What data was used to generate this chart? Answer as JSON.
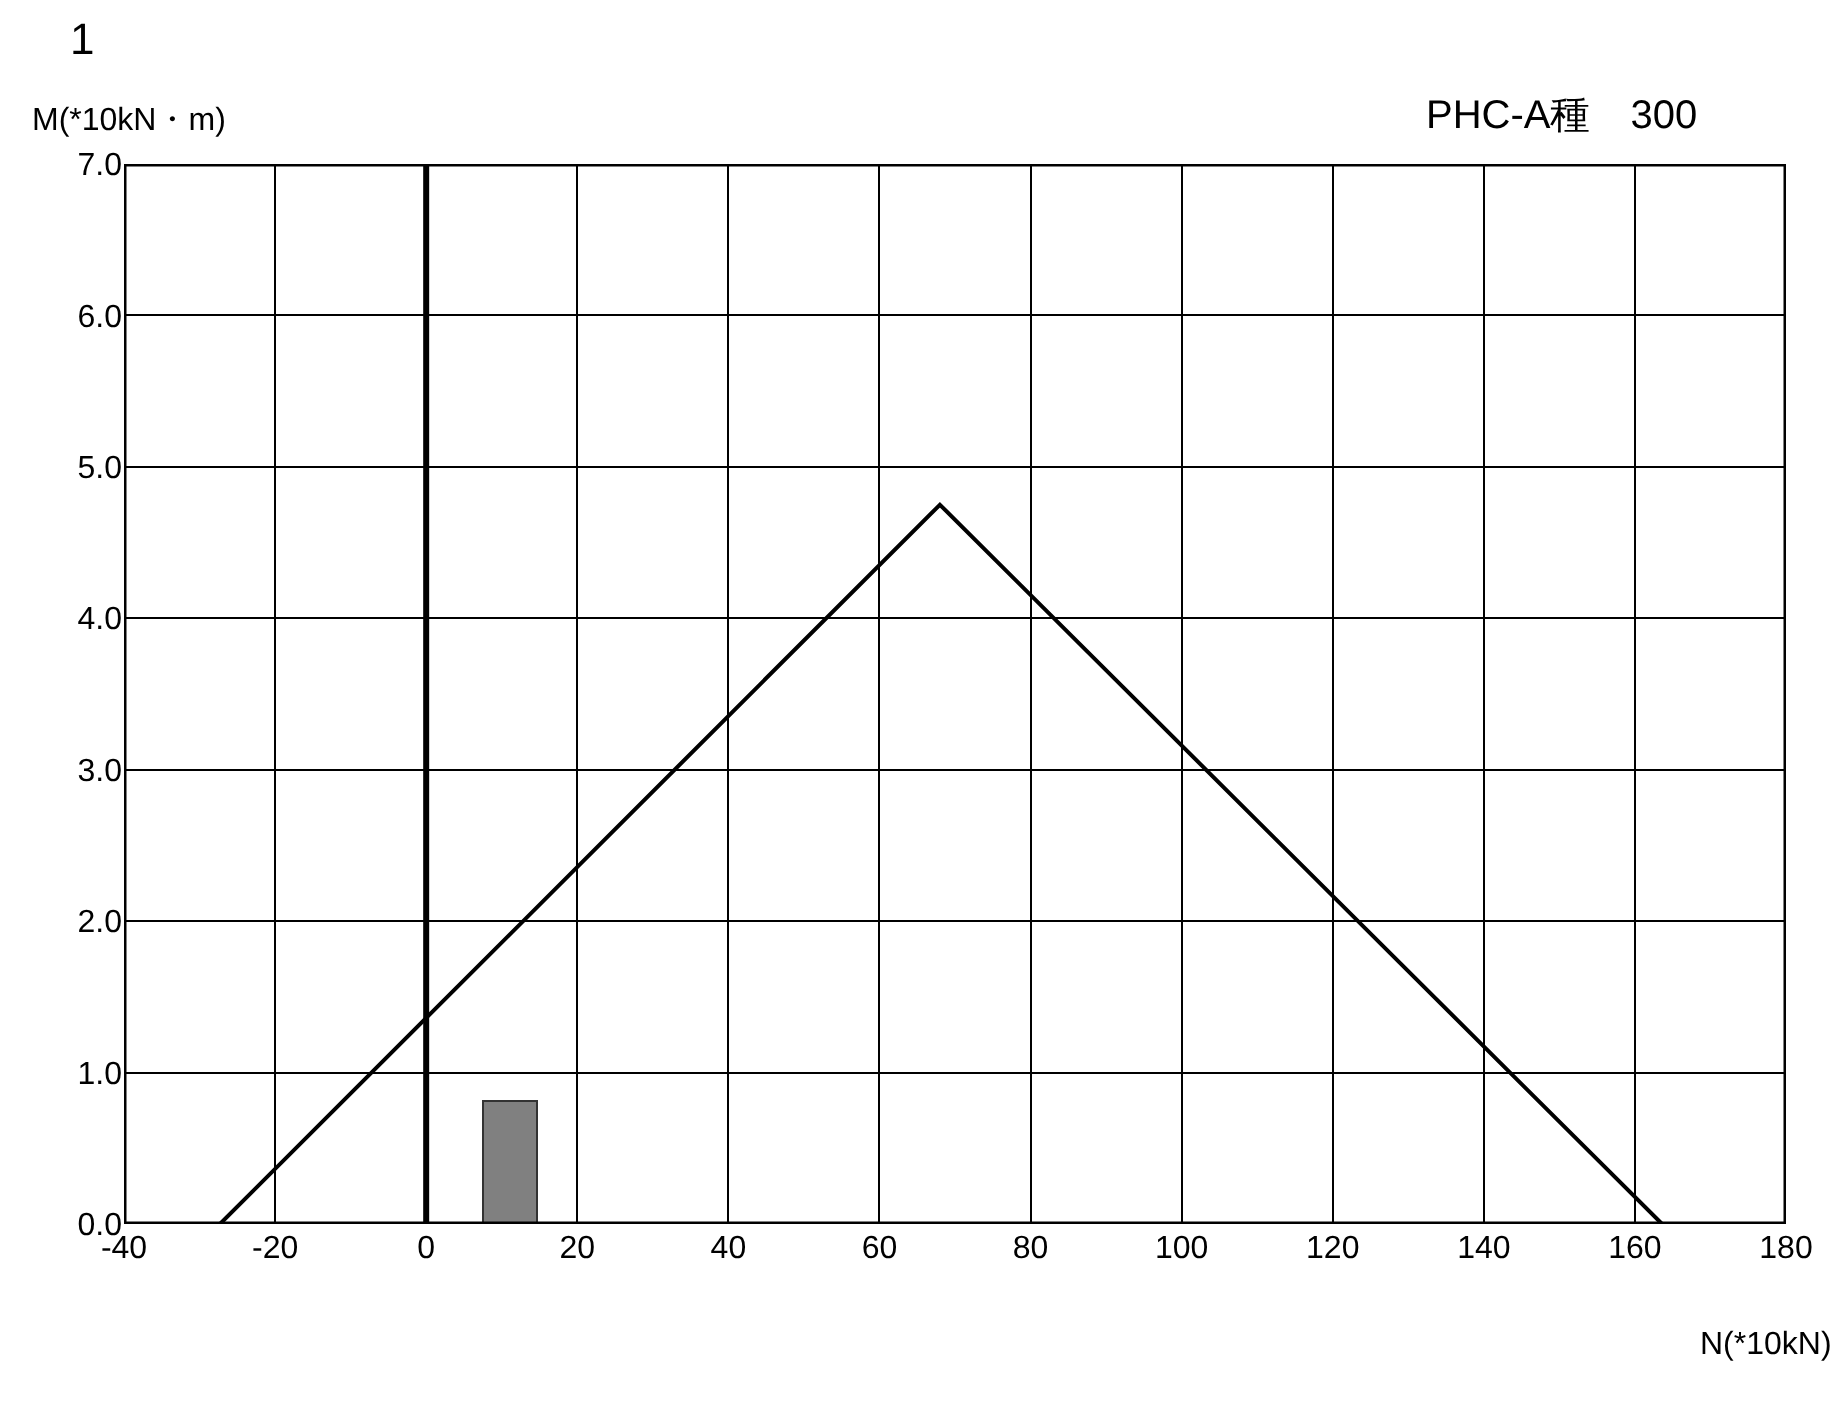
{
  "chart_data": {
    "type": "line",
    "title": "1",
    "subtitle": "PHC-A種　300",
    "xlabel": "N(*10kN)",
    "ylabel": "M(*10kN・m)",
    "series": [
      {
        "color": "#000000",
        "x": [
          -27.3,
          68,
          163.6
        ],
        "values": [
          0,
          4.75,
          0
        ]
      },
      {
        "type": "bar",
        "color": "#808080",
        "x": [
          11.2
        ],
        "values": [
          0.8
        ]
      }
    ],
    "xlim": [
      -40,
      180
    ],
    "xticks": [
      -40,
      -20,
      0,
      20,
      40,
      60,
      80,
      100,
      120,
      140,
      160,
      180
    ],
    "ylim": [
      0,
      7
    ],
    "yticks": [
      {
        "value": 0,
        "label": "0.0"
      },
      {
        "value": 1,
        "label": "1.0"
      },
      {
        "value": 2,
        "label": "2.0"
      },
      {
        "value": 3,
        "label": "3.0"
      },
      {
        "value": 4,
        "label": "4.0"
      },
      {
        "value": 5,
        "label": "5.0"
      },
      {
        "value": 6,
        "label": "6.0"
      },
      {
        "value": 7,
        "label": "7.0"
      }
    ],
    "ref_lines": [
      {
        "axis": "x",
        "value": 0,
        "color": "#000000"
      }
    ],
    "grid": true,
    "marker": "none",
    "line_style": "solid"
  }
}
